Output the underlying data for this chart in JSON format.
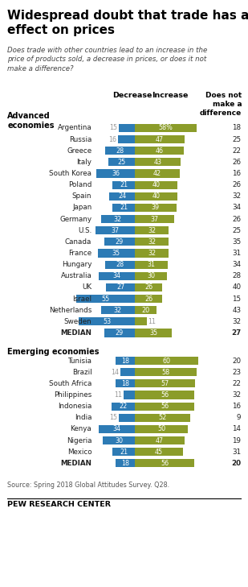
{
  "title": "Widespread doubt that trade has any\neffect on prices",
  "subtitle": "Does trade with other countries lead to an increase in the\nprice of products sold, a decrease in prices, or does it not\nmake a difference?",
  "col_header_decrease": "Decrease",
  "col_header_increase": "Increase",
  "col_header_nodiff": "Does not\nmake a\ndifference",
  "source": "Source: Spring 2018 Global Attitudes Survey. Q28.",
  "footer": "PEW RESEARCH CENTER",
  "decrease_color": "#2D7BB5",
  "increase_color": "#8B9C2A",
  "gray_text": "#999999",
  "dark_text": "#222222",
  "advanced": [
    {
      "country": "Argentina",
      "decrease": 15,
      "increase": 58,
      "nodiff": 18,
      "dec_gray": true,
      "inc_pct": true,
      "sweden_inc": false
    },
    {
      "country": "Russia",
      "decrease": 16,
      "increase": 47,
      "nodiff": 25,
      "dec_gray": true,
      "inc_pct": false,
      "sweden_inc": false
    },
    {
      "country": "Greece",
      "decrease": 28,
      "increase": 46,
      "nodiff": 22,
      "dec_gray": false,
      "inc_pct": false,
      "sweden_inc": false
    },
    {
      "country": "Italy",
      "decrease": 25,
      "increase": 43,
      "nodiff": 26,
      "dec_gray": false,
      "inc_pct": false,
      "sweden_inc": false
    },
    {
      "country": "South Korea",
      "decrease": 36,
      "increase": 42,
      "nodiff": 16,
      "dec_gray": false,
      "inc_pct": false,
      "sweden_inc": false
    },
    {
      "country": "Poland",
      "decrease": 21,
      "increase": 40,
      "nodiff": 26,
      "dec_gray": false,
      "inc_pct": false,
      "sweden_inc": false
    },
    {
      "country": "Spain",
      "decrease": 24,
      "increase": 40,
      "nodiff": 32,
      "dec_gray": false,
      "inc_pct": false,
      "sweden_inc": false
    },
    {
      "country": "Japan",
      "decrease": 21,
      "increase": 39,
      "nodiff": 34,
      "dec_gray": false,
      "inc_pct": false,
      "sweden_inc": false
    },
    {
      "country": "Germany",
      "decrease": 32,
      "increase": 37,
      "nodiff": 26,
      "dec_gray": false,
      "inc_pct": false,
      "sweden_inc": false
    },
    {
      "country": "U.S.",
      "decrease": 37,
      "increase": 32,
      "nodiff": 25,
      "dec_gray": false,
      "inc_pct": false,
      "sweden_inc": false
    },
    {
      "country": "Canada",
      "decrease": 29,
      "increase": 32,
      "nodiff": 35,
      "dec_gray": false,
      "inc_pct": false,
      "sweden_inc": false
    },
    {
      "country": "France",
      "decrease": 35,
      "increase": 32,
      "nodiff": 31,
      "dec_gray": false,
      "inc_pct": false,
      "sweden_inc": false
    },
    {
      "country": "Hungary",
      "decrease": 28,
      "increase": 31,
      "nodiff": 34,
      "dec_gray": false,
      "inc_pct": false,
      "sweden_inc": false
    },
    {
      "country": "Australia",
      "decrease": 34,
      "increase": 30,
      "nodiff": 28,
      "dec_gray": false,
      "inc_pct": false,
      "sweden_inc": false
    },
    {
      "country": "UK",
      "decrease": 27,
      "increase": 26,
      "nodiff": 40,
      "dec_gray": false,
      "inc_pct": false,
      "sweden_inc": false
    },
    {
      "country": "Israel",
      "decrease": 55,
      "increase": 26,
      "nodiff": 15,
      "dec_gray": false,
      "inc_pct": false,
      "sweden_inc": false
    },
    {
      "country": "Netherlands",
      "decrease": 32,
      "increase": 20,
      "nodiff": 43,
      "dec_gray": false,
      "inc_pct": false,
      "sweden_inc": false
    },
    {
      "country": "Sweden",
      "decrease": 53,
      "increase": 11,
      "nodiff": 32,
      "dec_gray": false,
      "inc_pct": false,
      "sweden_inc": true
    },
    {
      "country": "MEDIAN",
      "decrease": 29,
      "increase": 35,
      "nodiff": 27,
      "dec_gray": false,
      "inc_pct": false,
      "sweden_inc": false
    }
  ],
  "emerging": [
    {
      "country": "Tunisia",
      "decrease": 18,
      "increase": 60,
      "nodiff": 20,
      "dec_gray": false,
      "inc_pct": false,
      "sweden_inc": false
    },
    {
      "country": "Brazil",
      "decrease": 14,
      "increase": 58,
      "nodiff": 23,
      "dec_gray": true,
      "inc_pct": false,
      "sweden_inc": false
    },
    {
      "country": "South Africa",
      "decrease": 18,
      "increase": 57,
      "nodiff": 22,
      "dec_gray": false,
      "inc_pct": false,
      "sweden_inc": false
    },
    {
      "country": "Philippines",
      "decrease": 11,
      "increase": 56,
      "nodiff": 32,
      "dec_gray": true,
      "inc_pct": false,
      "sweden_inc": false
    },
    {
      "country": "Indonesia",
      "decrease": 22,
      "increase": 56,
      "nodiff": 16,
      "dec_gray": false,
      "inc_pct": false,
      "sweden_inc": false
    },
    {
      "country": "India",
      "decrease": 15,
      "increase": 52,
      "nodiff": 9,
      "dec_gray": true,
      "inc_pct": false,
      "sweden_inc": false
    },
    {
      "country": "Kenya",
      "decrease": 34,
      "increase": 50,
      "nodiff": 14,
      "dec_gray": false,
      "inc_pct": false,
      "sweden_inc": false
    },
    {
      "country": "Nigeria",
      "decrease": 30,
      "increase": 47,
      "nodiff": 19,
      "dec_gray": false,
      "inc_pct": false,
      "sweden_inc": false
    },
    {
      "country": "Mexico",
      "decrease": 21,
      "increase": 45,
      "nodiff": 31,
      "dec_gray": false,
      "inc_pct": false,
      "sweden_inc": false
    },
    {
      "country": "MEDIAN",
      "decrease": 18,
      "increase": 56,
      "nodiff": 20,
      "dec_gray": false,
      "inc_pct": false,
      "sweden_inc": false
    }
  ]
}
